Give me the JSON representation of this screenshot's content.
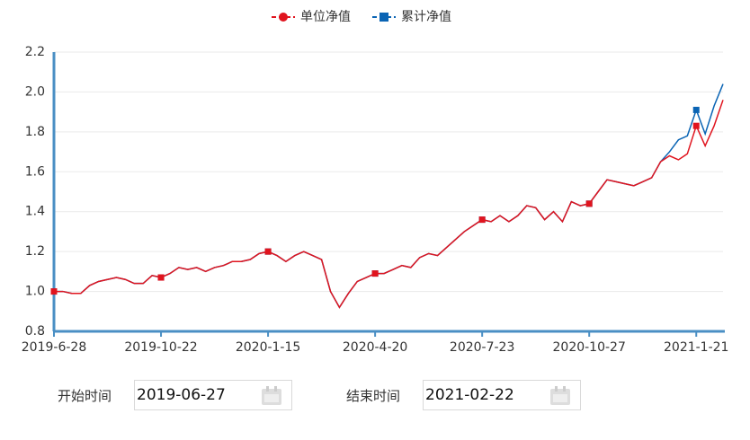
{
  "chart_data": {
    "type": "line",
    "categories": [
      "2019-6-28",
      null,
      null,
      null,
      null,
      null,
      null,
      null,
      null,
      null,
      null,
      null,
      "2019-10-22",
      null,
      null,
      null,
      null,
      null,
      null,
      null,
      null,
      null,
      null,
      null,
      "2020-1-15",
      null,
      null,
      null,
      null,
      null,
      null,
      null,
      null,
      null,
      null,
      null,
      "2020-4-20",
      null,
      null,
      null,
      null,
      null,
      null,
      null,
      null,
      null,
      null,
      null,
      "2020-7-23",
      null,
      null,
      null,
      null,
      null,
      null,
      null,
      null,
      null,
      null,
      null,
      "2020-10-27",
      null,
      null,
      null,
      null,
      null,
      null,
      null,
      null,
      null,
      null,
      null,
      "2021-1-21",
      null,
      null,
      null
    ],
    "series": [
      {
        "name": "单位净值",
        "color": "#e0141e",
        "values": [
          1.0,
          1.0,
          0.99,
          0.99,
          1.03,
          1.05,
          1.06,
          1.07,
          1.06,
          1.04,
          1.04,
          1.08,
          1.07,
          1.09,
          1.12,
          1.11,
          1.12,
          1.1,
          1.12,
          1.13,
          1.15,
          1.15,
          1.16,
          1.19,
          1.2,
          1.18,
          1.15,
          1.18,
          1.2,
          1.18,
          1.16,
          1.0,
          0.92,
          0.99,
          1.05,
          1.07,
          1.09,
          1.09,
          1.11,
          1.13,
          1.12,
          1.17,
          1.19,
          1.18,
          1.22,
          1.26,
          1.3,
          1.33,
          1.36,
          1.35,
          1.38,
          1.35,
          1.38,
          1.43,
          1.42,
          1.36,
          1.4,
          1.35,
          1.45,
          1.43,
          1.44,
          1.5,
          1.56,
          1.55,
          1.54,
          1.53,
          1.55,
          1.57,
          1.65,
          1.68,
          1.66,
          1.69,
          1.83,
          1.73,
          1.83,
          1.96
        ]
      },
      {
        "name": "累计净值",
        "color": "#0a64b4",
        "values": [
          1.0,
          1.0,
          0.99,
          0.99,
          1.03,
          1.05,
          1.06,
          1.07,
          1.06,
          1.04,
          1.04,
          1.08,
          1.07,
          1.09,
          1.12,
          1.11,
          1.12,
          1.1,
          1.12,
          1.13,
          1.15,
          1.15,
          1.16,
          1.19,
          1.2,
          1.18,
          1.15,
          1.18,
          1.2,
          1.18,
          1.16,
          1.0,
          0.92,
          0.99,
          1.05,
          1.07,
          1.09,
          1.09,
          1.11,
          1.13,
          1.12,
          1.17,
          1.19,
          1.18,
          1.22,
          1.26,
          1.3,
          1.33,
          1.36,
          1.35,
          1.38,
          1.35,
          1.38,
          1.43,
          1.42,
          1.36,
          1.4,
          1.35,
          1.45,
          1.43,
          1.44,
          1.5,
          1.56,
          1.55,
          1.54,
          1.53,
          1.55,
          1.57,
          1.65,
          1.7,
          1.76,
          1.78,
          1.91,
          1.79,
          1.93,
          2.04
        ]
      }
    ],
    "ylim": [
      0.8,
      2.2
    ],
    "yticks": [
      0.8,
      {
        "value": 1.0,
        "label": "1.0"
      },
      1.2,
      1.4,
      1.6,
      1.8,
      {
        "value": 2.0,
        "label": "2.0"
      },
      2.2
    ],
    "grid": true
  },
  "form": {
    "start_label": "开始时间",
    "start_date": "2019-06-27",
    "end_label": "结束时间",
    "end_date": "2021-02-22"
  }
}
